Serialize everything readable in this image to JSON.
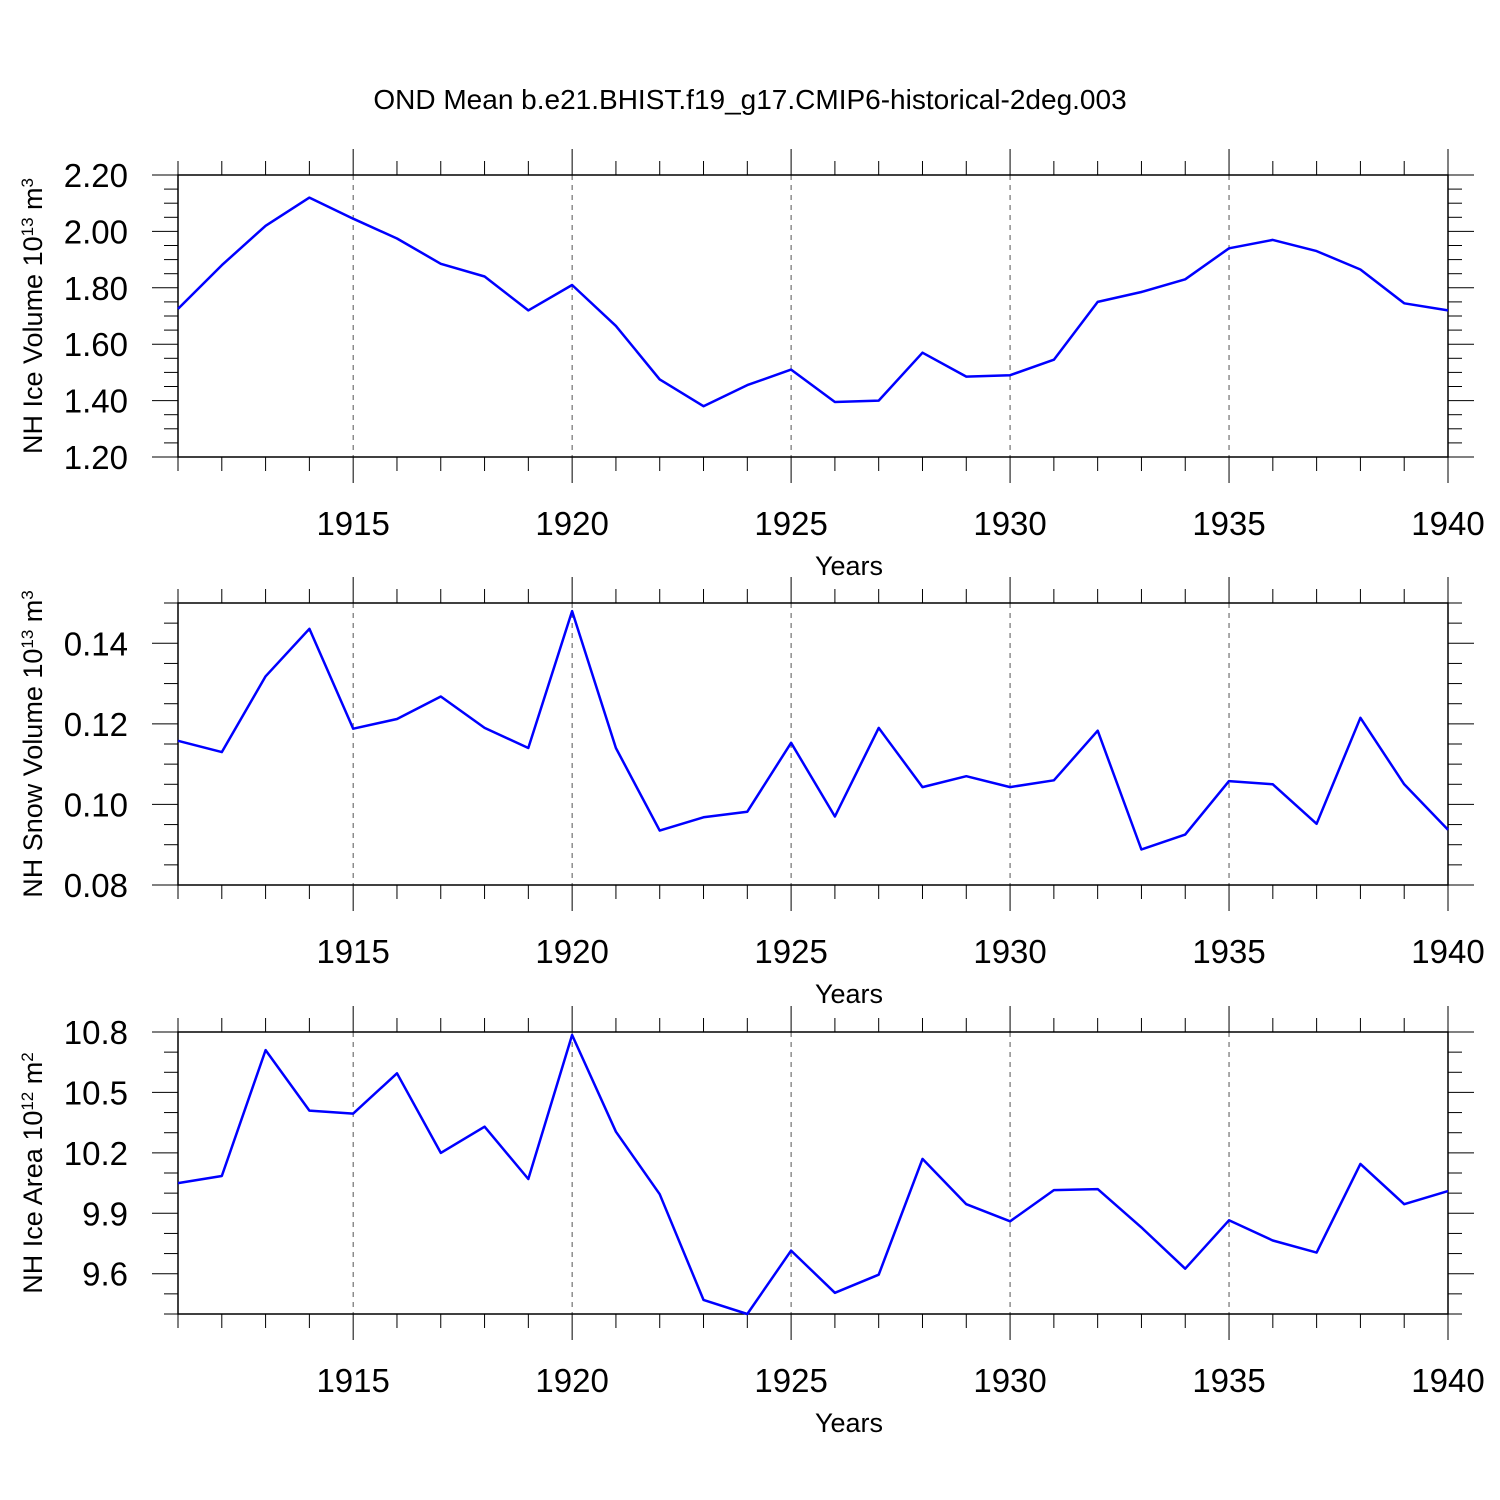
{
  "title": "OND Mean b.e21.BHIST.f19_g17.CMIP6-historical-2deg.003",
  "line_color": "#0000ff",
  "chart_data": [
    {
      "type": "line",
      "title": "",
      "xlabel": "Years",
      "ylabel": {
        "text": "NH Ice Volume 10",
        "sup1": "13",
        "mid": " m",
        "sup2": "3"
      },
      "xlim": [
        1911,
        1940
      ],
      "ylim": [
        1.2,
        2.2
      ],
      "x_ticks": [
        1915,
        1920,
        1925,
        1930,
        1935,
        1940
      ],
      "x_tick_labels": [
        "1915",
        "1920",
        "1925",
        "1930",
        "1935",
        "1940"
      ],
      "y_ticks": [
        1.2,
        1.4,
        1.6,
        1.8,
        2.0,
        2.2
      ],
      "y_tick_labels": [
        "1.20",
        "1.40",
        "1.60",
        "1.80",
        "2.00",
        "2.20"
      ],
      "y_minor_step": 0.05,
      "x": [
        1911,
        1912,
        1913,
        1914,
        1915,
        1916,
        1917,
        1918,
        1919,
        1920,
        1921,
        1922,
        1923,
        1924,
        1925,
        1926,
        1927,
        1928,
        1929,
        1930,
        1931,
        1932,
        1933,
        1934,
        1935,
        1936,
        1937,
        1938,
        1939,
        1940
      ],
      "series": [
        {
          "values": [
            1.725,
            1.88,
            2.02,
            2.12,
            2.045,
            1.975,
            1.885,
            1.84,
            1.72,
            1.81,
            1.665,
            1.475,
            1.38,
            1.455,
            1.51,
            1.395,
            1.4,
            1.57,
            1.485,
            1.49,
            1.545,
            1.75,
            1.785,
            1.83,
            1.94,
            1.97,
            1.93,
            1.865,
            1.745,
            1.72
          ]
        }
      ]
    },
    {
      "type": "line",
      "title": "",
      "xlabel": "Years",
      "ylabel": {
        "text": "NH Snow Volume 10",
        "sup1": "13",
        "mid": " m",
        "sup2": "3"
      },
      "xlim": [
        1911,
        1940
      ],
      "ylim": [
        0.08,
        0.15
      ],
      "x_ticks": [
        1915,
        1920,
        1925,
        1930,
        1935,
        1940
      ],
      "x_tick_labels": [
        "1915",
        "1920",
        "1925",
        "1930",
        "1935",
        "1940"
      ],
      "y_ticks": [
        0.08,
        0.1,
        0.12,
        0.14
      ],
      "y_tick_labels": [
        "0.08",
        "0.10",
        "0.12",
        "0.14"
      ],
      "y_minor_step": 0.005,
      "x": [
        1911,
        1912,
        1913,
        1914,
        1915,
        1916,
        1917,
        1918,
        1919,
        1920,
        1921,
        1922,
        1923,
        1924,
        1925,
        1926,
        1927,
        1928,
        1929,
        1930,
        1931,
        1932,
        1933,
        1934,
        1935,
        1936,
        1937,
        1938,
        1939,
        1940
      ],
      "series": [
        {
          "values": [
            0.1158,
            0.113,
            0.1318,
            0.1436,
            0.1188,
            0.1212,
            0.1268,
            0.119,
            0.114,
            0.148,
            0.114,
            0.0935,
            0.0968,
            0.0982,
            0.1153,
            0.097,
            0.119,
            0.1043,
            0.107,
            0.1043,
            0.106,
            0.1183,
            0.0888,
            0.0925,
            0.1058,
            0.105,
            0.0952,
            0.1215,
            0.105,
            0.0937
          ]
        }
      ]
    },
    {
      "type": "line",
      "title": "",
      "xlabel": "Years",
      "ylabel": {
        "text": "NH Ice Area 10",
        "sup1": "12",
        "mid": " m",
        "sup2": "2"
      },
      "xlim": [
        1911,
        1940
      ],
      "ylim": [
        9.4,
        10.8
      ],
      "x_ticks": [
        1915,
        1920,
        1925,
        1930,
        1935,
        1940
      ],
      "x_tick_labels": [
        "1915",
        "1920",
        "1925",
        "1930",
        "1935",
        "1940"
      ],
      "y_ticks": [
        9.6,
        9.9,
        10.2,
        10.5,
        10.8
      ],
      "y_tick_labels": [
        "9.6",
        "9.9",
        "10.2",
        "10.5",
        "10.8"
      ],
      "y_minor_step": 0.1,
      "x": [
        1911,
        1912,
        1913,
        1914,
        1915,
        1916,
        1917,
        1918,
        1919,
        1920,
        1921,
        1922,
        1923,
        1924,
        1925,
        1926,
        1927,
        1928,
        1929,
        1930,
        1931,
        1932,
        1933,
        1934,
        1935,
        1936,
        1937,
        1938,
        1939,
        1940
      ],
      "series": [
        {
          "values": [
            10.05,
            10.085,
            10.71,
            10.41,
            10.395,
            10.595,
            10.2,
            10.33,
            10.07,
            10.785,
            10.305,
            9.995,
            9.47,
            9.4,
            9.715,
            9.505,
            9.595,
            10.17,
            9.945,
            9.86,
            10.015,
            10.02,
            9.83,
            9.625,
            9.865,
            9.765,
            9.705,
            10.145,
            9.945,
            10.01
          ]
        }
      ]
    }
  ]
}
